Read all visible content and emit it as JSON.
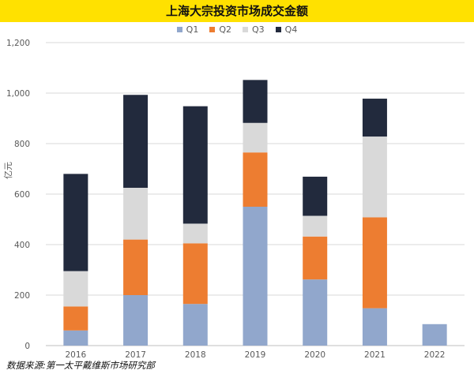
{
  "title": "上海大宗投资市场成交金额",
  "source": "数据来源:第一太平戴维斯市场研究部",
  "colors": {
    "title_band": "#ffe100",
    "Q1": "#91a7cc",
    "Q2": "#ed7d31",
    "Q3": "#d9d9d9",
    "Q4": "#222a3d",
    "grid": "#d9d9d9",
    "axis_text": "#595959"
  },
  "chart_data": {
    "type": "bar",
    "stacked": true,
    "title": "上海大宗投资市场成交金额",
    "ylabel": "亿元",
    "xlabel": "",
    "ylim": [
      0,
      1200
    ],
    "yticks": [
      0,
      200,
      400,
      600,
      800,
      1000,
      1200
    ],
    "ytick_labels": [
      "0",
      "200",
      "400",
      "600",
      "800",
      "1,000",
      "1,200"
    ],
    "grid": true,
    "legend_position": "top-center",
    "categories": [
      "2016",
      "2017",
      "2018",
      "2019",
      "2020",
      "2021",
      "2022"
    ],
    "series": [
      {
        "name": "Q1",
        "values": [
          60,
          200,
          165,
          550,
          262,
          148,
          85
        ]
      },
      {
        "name": "Q2",
        "values": [
          95,
          220,
          240,
          215,
          170,
          360,
          0
        ]
      },
      {
        "name": "Q3",
        "values": [
          140,
          205,
          78,
          117,
          82,
          320,
          0
        ]
      },
      {
        "name": "Q4",
        "values": [
          385,
          368,
          465,
          170,
          155,
          150,
          0
        ]
      }
    ]
  }
}
